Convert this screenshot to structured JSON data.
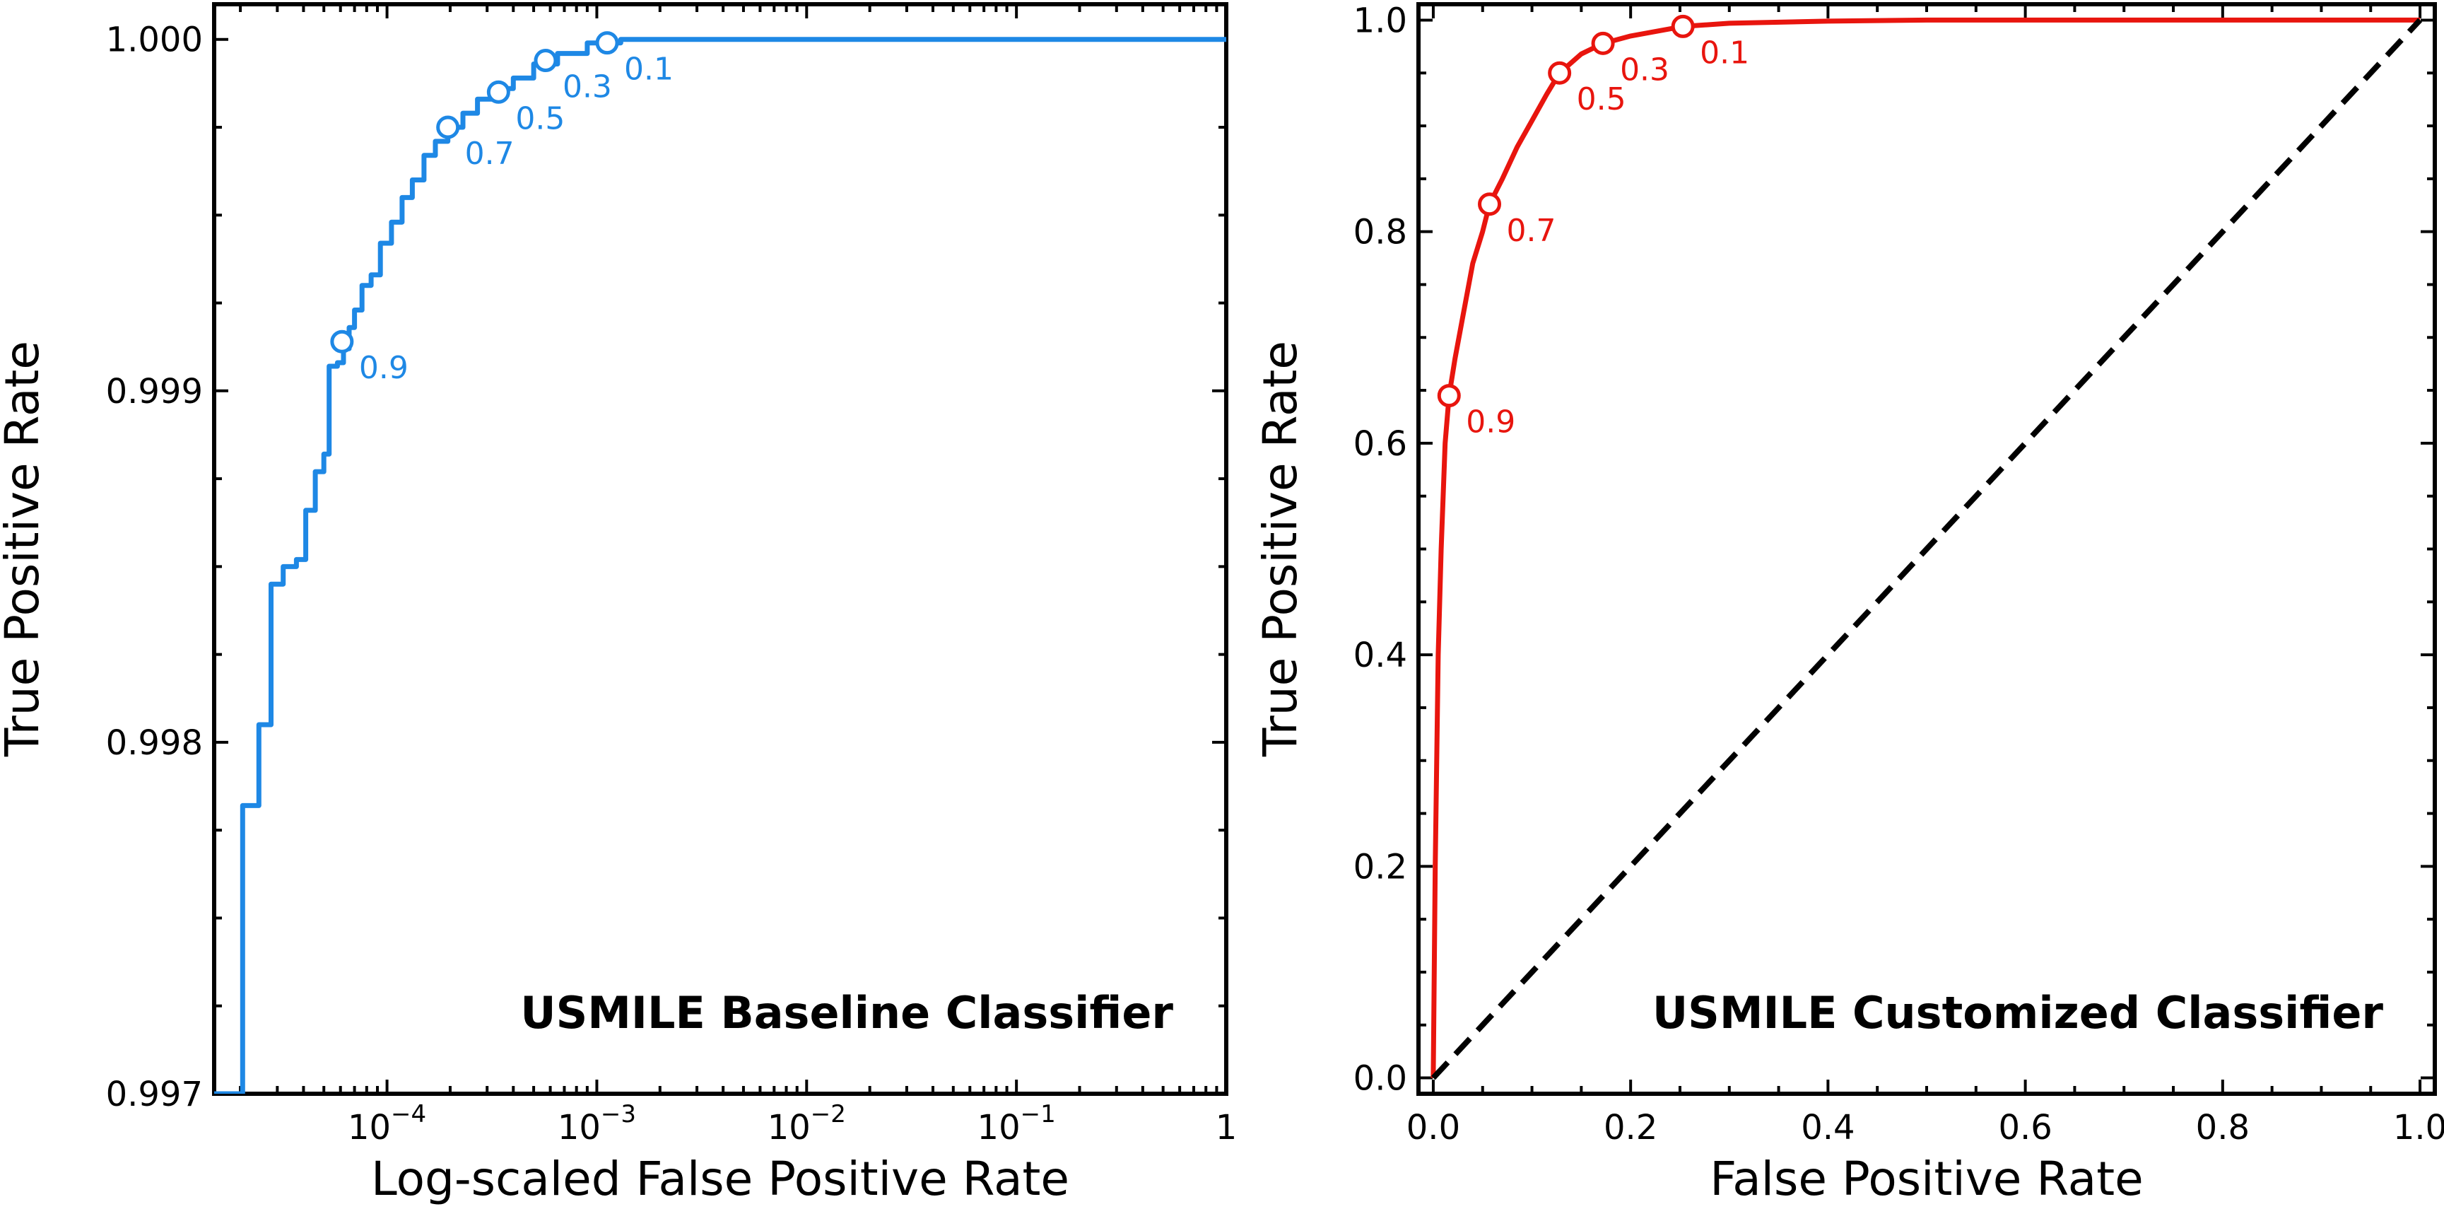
{
  "chart_data": [
    {
      "type": "line",
      "title": "USMILE Baseline Classifier",
      "xlabel": "Log-scaled False Positive Rate",
      "ylabel": "True Positive Rate",
      "xscale": "log",
      "xlim": [
        1.5e-05,
        1
      ],
      "ylim": [
        0.997,
        1.0001
      ],
      "color": "#1e88e5",
      "x_ticks": [
        {
          "value": 0.0001,
          "base": "10",
          "exp": "−4"
        },
        {
          "value": 0.001,
          "base": "10",
          "exp": "−3"
        },
        {
          "value": 0.01,
          "base": "10",
          "exp": "−2"
        },
        {
          "value": 0.1,
          "base": "10",
          "exp": "−1"
        },
        {
          "value": 1,
          "base": "1",
          "exp": ""
        }
      ],
      "y_ticks": [
        {
          "value": 0.997,
          "label": "0.997"
        },
        {
          "value": 0.998,
          "label": "0.998"
        },
        {
          "value": 0.999,
          "label": "0.999"
        },
        {
          "value": 1.0,
          "label": "1.000"
        }
      ],
      "series": [
        {
          "name": "ROC",
          "step": true,
          "points": [
            [
              1.5e-05,
              0.997
            ],
            [
              2.05e-05,
              0.997
            ],
            [
              2.05e-05,
              0.99782
            ],
            [
              2.45e-05,
              0.99782
            ],
            [
              2.45e-05,
              0.99805
            ],
            [
              2.8e-05,
              0.99805
            ],
            [
              2.8e-05,
              0.99845
            ],
            [
              3.2e-05,
              0.99845
            ],
            [
              3.2e-05,
              0.9985
            ],
            [
              3.7e-05,
              0.9985
            ],
            [
              3.7e-05,
              0.99852
            ],
            [
              4.1e-05,
              0.99852
            ],
            [
              4.1e-05,
              0.99866
            ],
            [
              4.55e-05,
              0.99866
            ],
            [
              4.55e-05,
              0.99877
            ],
            [
              5e-05,
              0.99877
            ],
            [
              5e-05,
              0.99882
            ],
            [
              5.3e-05,
              0.99882
            ],
            [
              5.3e-05,
              0.99907
            ],
            [
              5.8e-05,
              0.99907
            ],
            [
              5.8e-05,
              0.99908
            ],
            [
              6.2e-05,
              0.99908
            ],
            [
              6.2e-05,
              0.99912
            ],
            [
              6.6e-05,
              0.99912
            ],
            [
              6.6e-05,
              0.99918
            ],
            [
              7e-05,
              0.99918
            ],
            [
              7e-05,
              0.99923
            ],
            [
              7.6e-05,
              0.99923
            ],
            [
              7.6e-05,
              0.9993
            ],
            [
              8.4e-05,
              0.9993
            ],
            [
              8.4e-05,
              0.99933
            ],
            [
              9.3e-05,
              0.99933
            ],
            [
              9.3e-05,
              0.99942
            ],
            [
              0.000105,
              0.99942
            ],
            [
              0.000105,
              0.99948
            ],
            [
              0.000118,
              0.99948
            ],
            [
              0.000118,
              0.99955
            ],
            [
              0.000132,
              0.99955
            ],
            [
              0.000132,
              0.9996
            ],
            [
              0.00015,
              0.9996
            ],
            [
              0.00015,
              0.99967
            ],
            [
              0.00017,
              0.99967
            ],
            [
              0.00017,
              0.99971
            ],
            [
              0.000195,
              0.99971
            ],
            [
              0.000195,
              0.99975
            ],
            [
              0.00023,
              0.99975
            ],
            [
              0.00023,
              0.99979
            ],
            [
              0.00027,
              0.99979
            ],
            [
              0.00027,
              0.99983
            ],
            [
              0.00033,
              0.99983
            ],
            [
              0.00033,
              0.99986
            ],
            [
              0.0004,
              0.99986
            ],
            [
              0.0004,
              0.99989
            ],
            [
              0.0005,
              0.99989
            ],
            [
              0.0005,
              0.99993
            ],
            [
              0.00065,
              0.99993
            ],
            [
              0.00065,
              0.99996
            ],
            [
              0.0009,
              0.99996
            ],
            [
              0.0009,
              0.99999
            ],
            [
              0.0013,
              0.99999
            ],
            [
              0.0013,
              1.0
            ],
            [
              0.003,
              1.0
            ],
            [
              1,
              1.0
            ]
          ]
        }
      ],
      "thresholds": [
        {
          "label": "0.9",
          "fpr": 6.1e-05,
          "tpr": 0.99914
        },
        {
          "label": "0.7",
          "fpr": 0.000195,
          "tpr": 0.99975
        },
        {
          "label": "0.5",
          "fpr": 0.00034,
          "tpr": 0.99985
        },
        {
          "label": "0.3",
          "fpr": 0.00057,
          "tpr": 0.99994
        },
        {
          "label": "0.1",
          "fpr": 0.00112,
          "tpr": 0.99999
        }
      ]
    },
    {
      "type": "line",
      "title": "USMILE Customized Classifier",
      "xlabel": "False Positive Rate",
      "ylabel": "True Positive Rate",
      "xlim": [
        -0.015,
        1.015
      ],
      "ylim": [
        -0.015,
        1.015
      ],
      "color": "#e8150e",
      "x_ticks": [
        {
          "value": 0.0,
          "label": "0.0"
        },
        {
          "value": 0.2,
          "label": "0.2"
        },
        {
          "value": 0.4,
          "label": "0.4"
        },
        {
          "value": 0.6,
          "label": "0.6"
        },
        {
          "value": 0.8,
          "label": "0.8"
        },
        {
          "value": 1.0,
          "label": "1.0"
        }
      ],
      "y_ticks": [
        {
          "value": 0.0,
          "label": "0.0"
        },
        {
          "value": 0.2,
          "label": "0.2"
        },
        {
          "value": 0.4,
          "label": "0.4"
        },
        {
          "value": 0.6,
          "label": "0.6"
        },
        {
          "value": 0.8,
          "label": "0.8"
        },
        {
          "value": 1.0,
          "label": "1.0"
        }
      ],
      "series": [
        {
          "name": "ROC",
          "points": [
            [
              0.0,
              0.0
            ],
            [
              0.002,
              0.2
            ],
            [
              0.005,
              0.4
            ],
            [
              0.008,
              0.5
            ],
            [
              0.012,
              0.6
            ],
            [
              0.016,
              0.645
            ],
            [
              0.022,
              0.68
            ],
            [
              0.03,
              0.72
            ],
            [
              0.04,
              0.77
            ],
            [
              0.05,
              0.8
            ],
            [
              0.057,
              0.826
            ],
            [
              0.07,
              0.85
            ],
            [
              0.085,
              0.88
            ],
            [
              0.1,
              0.905
            ],
            [
              0.115,
              0.93
            ],
            [
              0.128,
              0.95
            ],
            [
              0.15,
              0.968
            ],
            [
              0.172,
              0.978
            ],
            [
              0.2,
              0.985
            ],
            [
              0.253,
              0.994
            ],
            [
              0.3,
              0.997
            ],
            [
              0.4,
              0.999
            ],
            [
              0.5,
              1.0
            ],
            [
              1.0,
              1.0
            ]
          ]
        },
        {
          "name": "chance",
          "style": "dashed",
          "points": [
            [
              0.0,
              0.0
            ],
            [
              1.0,
              1.0
            ]
          ]
        }
      ],
      "thresholds": [
        {
          "label": "0.9",
          "fpr": 0.016,
          "tpr": 0.645
        },
        {
          "label": "0.7",
          "fpr": 0.057,
          "tpr": 0.826
        },
        {
          "label": "0.5",
          "fpr": 0.128,
          "tpr": 0.95
        },
        {
          "label": "0.3",
          "fpr": 0.172,
          "tpr": 0.978
        },
        {
          "label": "0.1",
          "fpr": 0.253,
          "tpr": 0.994
        }
      ]
    }
  ]
}
